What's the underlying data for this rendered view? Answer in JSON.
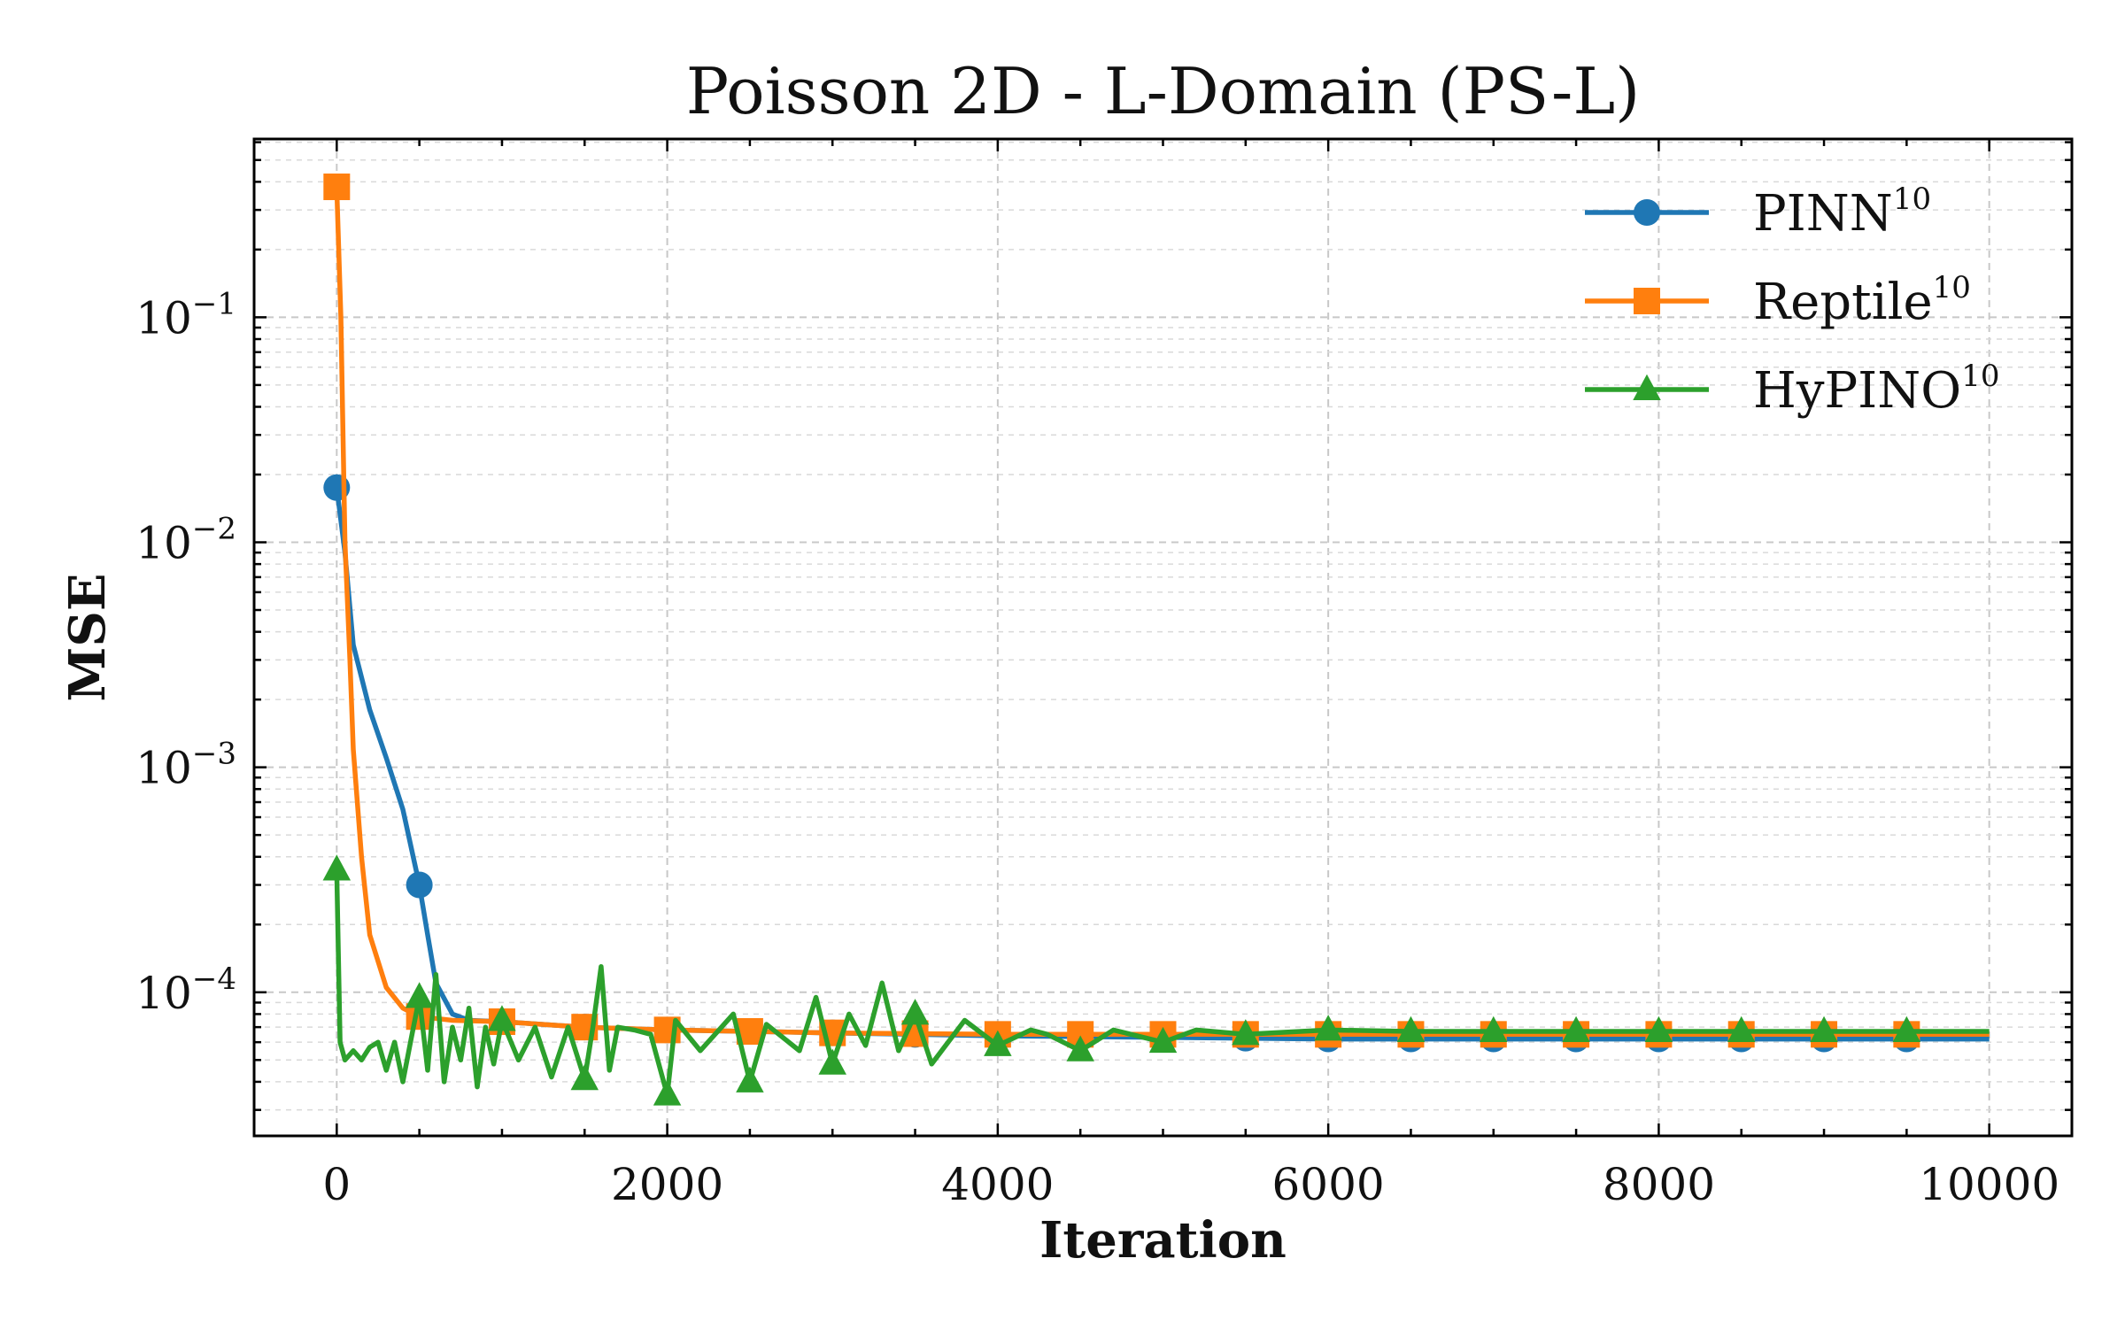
{
  "chart_data": {
    "type": "line",
    "title": "Poisson 2D - L-Domain (PS-L)",
    "xlabel": "Iteration",
    "ylabel": "MSE",
    "yscale": "log",
    "xlim": [
      -500,
      10500
    ],
    "ylim": [
      2.3e-05,
      0.62
    ],
    "x_ticks": [
      0,
      2000,
      4000,
      6000,
      8000,
      10000
    ],
    "x_tick_labels": [
      "0",
      "2000",
      "4000",
      "6000",
      "8000",
      "10000"
    ],
    "y_ticks": [
      0.0001,
      0.001,
      0.01,
      0.1
    ],
    "y_tick_labels": [
      {
        "base": "10",
        "exp": "−4"
      },
      {
        "base": "10",
        "exp": "−3"
      },
      {
        "base": "10",
        "exp": "−2"
      },
      {
        "base": "10",
        "exp": "−1"
      }
    ],
    "grid": true,
    "legend_position": "top-right",
    "series": [
      {
        "name": "PINN",
        "sup": "10",
        "color": "#1f77b4",
        "marker": "circle",
        "points": [
          [
            0,
            0.0175
          ],
          [
            50,
            0.009
          ],
          [
            100,
            0.0035
          ],
          [
            200,
            0.0018
          ],
          [
            300,
            0.0011
          ],
          [
            400,
            0.00065
          ],
          [
            500,
            0.0003
          ],
          [
            550,
            0.00018
          ],
          [
            600,
            0.00011
          ],
          [
            700,
            8e-05
          ],
          [
            800,
            7.5e-05
          ],
          [
            1000,
            7.4e-05
          ],
          [
            1500,
            7e-05
          ],
          [
            2000,
            6.8e-05
          ],
          [
            3000,
            6.6e-05
          ],
          [
            4000,
            6.4e-05
          ],
          [
            5000,
            6.3e-05
          ],
          [
            6000,
            6.2e-05
          ],
          [
            7000,
            6.2e-05
          ],
          [
            8000,
            6.2e-05
          ],
          [
            9000,
            6.2e-05
          ],
          [
            10000,
            6.2e-05
          ]
        ],
        "marker_x": [
          0,
          500,
          1000,
          1500,
          2000,
          2500,
          3000,
          3500,
          4000,
          4500,
          5000,
          5500,
          6000,
          6500,
          7000,
          7500,
          8000,
          8500,
          9000,
          9500
        ]
      },
      {
        "name": "Reptile",
        "sup": "10",
        "color": "#ff7f0e",
        "marker": "square",
        "points": [
          [
            0,
            0.38
          ],
          [
            25,
            0.1
          ],
          [
            50,
            0.01
          ],
          [
            80,
            0.003
          ],
          [
            100,
            0.0012
          ],
          [
            150,
            0.0004
          ],
          [
            200,
            0.00018
          ],
          [
            300,
            0.000105
          ],
          [
            400,
            8.5e-05
          ],
          [
            500,
            7.8e-05
          ],
          [
            700,
            7.5e-05
          ],
          [
            1000,
            7.4e-05
          ],
          [
            1500,
            7e-05
          ],
          [
            2000,
            6.8e-05
          ],
          [
            3000,
            6.6e-05
          ],
          [
            4000,
            6.5e-05
          ],
          [
            5000,
            6.5e-05
          ],
          [
            6000,
            6.5e-05
          ],
          [
            7000,
            6.5e-05
          ],
          [
            8000,
            6.5e-05
          ],
          [
            9000,
            6.5e-05
          ],
          [
            10000,
            6.5e-05
          ]
        ],
        "marker_x": [
          0,
          500,
          1000,
          1500,
          2000,
          2500,
          3000,
          3500,
          4000,
          4500,
          5000,
          5500,
          6000,
          6500,
          7000,
          7500,
          8000,
          8500,
          9000,
          9500
        ]
      },
      {
        "name": "HyPINO",
        "sup": "10",
        "color": "#2ca02c",
        "marker": "triangle",
        "points": [
          [
            0,
            0.00035
          ],
          [
            20,
            6e-05
          ],
          [
            50,
            5e-05
          ],
          [
            100,
            5.5e-05
          ],
          [
            150,
            5e-05
          ],
          [
            200,
            5.7e-05
          ],
          [
            250,
            6e-05
          ],
          [
            300,
            4.5e-05
          ],
          [
            350,
            6e-05
          ],
          [
            400,
            4e-05
          ],
          [
            450,
            6.2e-05
          ],
          [
            500,
            9.5e-05
          ],
          [
            550,
            4.5e-05
          ],
          [
            600,
            0.00012
          ],
          [
            650,
            4e-05
          ],
          [
            700,
            7e-05
          ],
          [
            750,
            5e-05
          ],
          [
            800,
            8.5e-05
          ],
          [
            850,
            3.8e-05
          ],
          [
            900,
            7e-05
          ],
          [
            950,
            4.8e-05
          ],
          [
            1000,
            7.5e-05
          ],
          [
            1100,
            5e-05
          ],
          [
            1200,
            7e-05
          ],
          [
            1300,
            4.2e-05
          ],
          [
            1400,
            7e-05
          ],
          [
            1500,
            4.1e-05
          ],
          [
            1550,
            7e-05
          ],
          [
            1600,
            0.00013
          ],
          [
            1650,
            4.5e-05
          ],
          [
            1700,
            7e-05
          ],
          [
            1800,
            6.8e-05
          ],
          [
            1900,
            6.5e-05
          ],
          [
            2000,
            3.5e-05
          ],
          [
            2050,
            7.5e-05
          ],
          [
            2200,
            5.5e-05
          ],
          [
            2400,
            8e-05
          ],
          [
            2500,
            4e-05
          ],
          [
            2600,
            7.2e-05
          ],
          [
            2800,
            5.5e-05
          ],
          [
            2900,
            9.5e-05
          ],
          [
            3000,
            4.8e-05
          ],
          [
            3100,
            8e-05
          ],
          [
            3200,
            5.8e-05
          ],
          [
            3300,
            0.00011
          ],
          [
            3400,
            5.5e-05
          ],
          [
            3500,
            8e-05
          ],
          [
            3600,
            4.8e-05
          ],
          [
            3800,
            7.5e-05
          ],
          [
            4000,
            5.8e-05
          ],
          [
            4200,
            6.8e-05
          ],
          [
            4300,
            6.5e-05
          ],
          [
            4500,
            5.5e-05
          ],
          [
            4700,
            6.8e-05
          ],
          [
            5000,
            6e-05
          ],
          [
            5200,
            6.8e-05
          ],
          [
            5500,
            6.5e-05
          ],
          [
            6000,
            6.8e-05
          ],
          [
            6500,
            6.7e-05
          ],
          [
            7000,
            6.7e-05
          ],
          [
            8000,
            6.7e-05
          ],
          [
            9000,
            6.7e-05
          ],
          [
            10000,
            6.7e-05
          ]
        ],
        "marker_x": [
          0,
          500,
          1000,
          1500,
          2000,
          2500,
          3000,
          3500,
          4000,
          4500,
          5000,
          5500,
          6000,
          6500,
          7000,
          7500,
          8000,
          8500,
          9000,
          9500
        ]
      }
    ]
  }
}
